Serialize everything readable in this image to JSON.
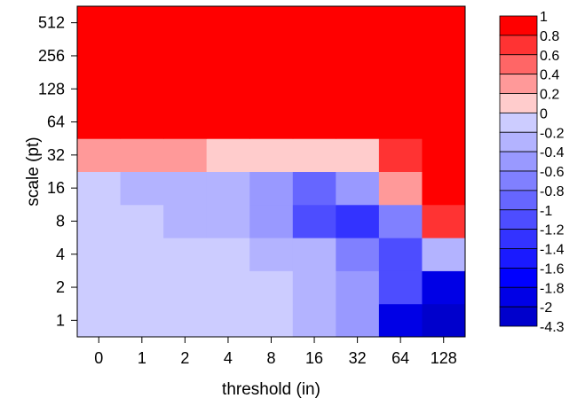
{
  "chart_data": {
    "type": "heatmap",
    "xlabel": "threshold (in)",
    "ylabel": "scale (pt)",
    "x_categories": [
      "0",
      "1",
      "2",
      "4",
      "8",
      "16",
      "32",
      "64",
      "128"
    ],
    "y_categories": [
      "1",
      "2",
      "4",
      "8",
      "16",
      "32",
      "64",
      "128",
      "256",
      "512"
    ],
    "values": [
      [
        -0.1,
        -0.1,
        -0.1,
        -0.1,
        -0.1,
        -0.3,
        -0.5,
        -1.9,
        -2.1
      ],
      [
        -0.1,
        -0.1,
        -0.1,
        -0.1,
        -0.1,
        -0.3,
        -0.5,
        -1.1,
        -1.9
      ],
      [
        -0.1,
        -0.1,
        -0.1,
        -0.1,
        -0.3,
        -0.3,
        -0.7,
        -1.1,
        -0.3
      ],
      [
        -0.1,
        -0.1,
        -0.3,
        -0.3,
        -0.5,
        -1.1,
        -1.3,
        -0.7,
        0.7
      ],
      [
        -0.1,
        -0.3,
        -0.3,
        -0.3,
        -0.5,
        -0.9,
        -0.5,
        0.3,
        1.0
      ],
      [
        0.3,
        0.3,
        0.3,
        0.1,
        0.1,
        0.1,
        0.1,
        0.7,
        1.0
      ],
      [
        0.9,
        0.9,
        0.9,
        1.0,
        1.0,
        1.0,
        1.0,
        1.0,
        1.0
      ],
      [
        1.0,
        1.0,
        1.0,
        1.0,
        1.0,
        1.0,
        1.0,
        1.0,
        1.0
      ],
      [
        1.0,
        1.0,
        1.0,
        1.0,
        1.0,
        1.0,
        1.0,
        1.0,
        1.0
      ],
      [
        1.0,
        1.0,
        1.0,
        1.0,
        1.0,
        1.0,
        1.0,
        1.0,
        1.0
      ]
    ],
    "colorbar": {
      "labels": [
        "1",
        "0.8",
        "0.6",
        "0.4",
        "0.2",
        "0",
        "-0.2",
        "-0.4",
        "-0.6",
        "-0.8",
        "-1",
        "-1.2",
        "-1.4",
        "-1.6",
        "-1.8",
        "-2",
        "-4.3"
      ],
      "colors": [
        "#ff0000",
        "#ff3333",
        "#ff6666",
        "#ff9999",
        "#ffcccc",
        "#ccccff",
        "#b3b3ff",
        "#9999ff",
        "#8080ff",
        "#6666ff",
        "#4d4dff",
        "#3333ff",
        "#1a1aff",
        "#0000ff",
        "#0000e6",
        "#0000cc"
      ]
    }
  }
}
